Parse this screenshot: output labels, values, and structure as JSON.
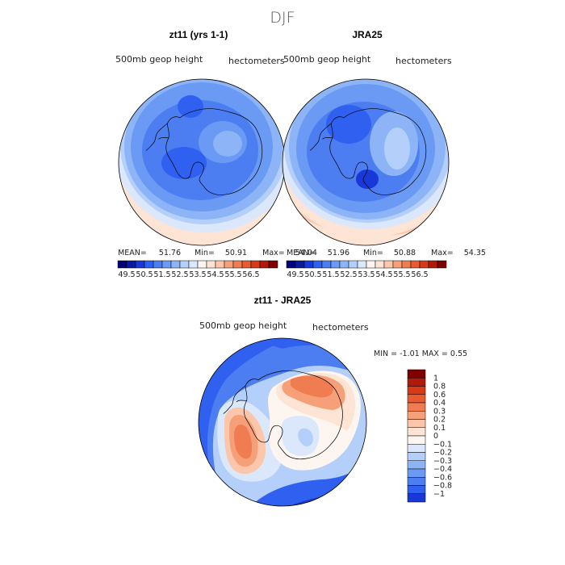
{
  "figure": {
    "title": "DJF",
    "season": "DJF"
  },
  "palette": {
    "blue": [
      "#00007a",
      "#0a1aa0",
      "#1838d8",
      "#3060f0",
      "#4c7ef2",
      "#6a9af4",
      "#8cb4f6",
      "#b4d0fa",
      "#dbe8fc"
    ],
    "neutral": "#fdf6f0",
    "red": [
      "#fde4d4",
      "#fbc6aa",
      "#f6a07a",
      "#f07c52",
      "#e85a30",
      "#d63a18",
      "#b01a0a",
      "#800000"
    ]
  },
  "panels": {
    "left": {
      "title": "zt11 (yrs 1-1)",
      "variable": "500mb geop height",
      "units": "hectometers",
      "stats": {
        "mean_label": "MEAN=",
        "mean": "51.76",
        "min_label": "Min=",
        "min": "50.91",
        "max_label": "Max=",
        "max": "54.04"
      }
    },
    "right": {
      "title": "JRA25",
      "variable": "500mb geop height",
      "units": "hectometers",
      "stats": {
        "mean_label": "MEAN=",
        "mean": "51.96",
        "min_label": "Min=",
        "min": "50.88",
        "max_label": "Max=",
        "max": "54.35"
      }
    },
    "diff": {
      "title": "zt11 - JRA25",
      "variable": "500mb geop height",
      "units": "hectometers",
      "stats_text": "MIN =   -1.01  MAX =    0.55"
    }
  },
  "colorbars": {
    "horizontal_labels": [
      "49.5",
      "50.5",
      "51.5",
      "52.5",
      "53.5",
      "54.5",
      "55.5",
      "56.5"
    ],
    "diff_labels": [
      "1",
      "0.8",
      "0.6",
      "0.4",
      "0.3",
      "0.2",
      "0.1",
      "0",
      "−0.1",
      "−0.2",
      "−0.3",
      "−0.4",
      "−0.6",
      "−0.8",
      "−1"
    ]
  },
  "chart_data": [
    {
      "type": "heatmap",
      "title": "zt11 (yrs 1-1)",
      "subtitle": "500mb geop height",
      "units": "hectometers",
      "projection": "south polar stereographic",
      "mean": 51.76,
      "min": 50.91,
      "max": 54.04,
      "contour_levels": [
        49.5,
        50.0,
        50.5,
        51.0,
        51.5,
        52.0,
        52.5,
        53.0,
        53.5,
        54.0,
        54.5,
        55.0,
        55.5,
        56.0,
        56.5
      ]
    },
    {
      "type": "heatmap",
      "title": "JRA25",
      "subtitle": "500mb geop height",
      "units": "hectometers",
      "projection": "south polar stereographic",
      "mean": 51.96,
      "min": 50.88,
      "max": 54.35,
      "contour_levels": [
        49.5,
        50.0,
        50.5,
        51.0,
        51.5,
        52.0,
        52.5,
        53.0,
        53.5,
        54.0,
        54.5,
        55.0,
        55.5,
        56.0,
        56.5
      ]
    },
    {
      "type": "heatmap",
      "title": "zt11 - JRA25",
      "subtitle": "500mb geop height",
      "units": "hectometers",
      "projection": "south polar stereographic",
      "min": -1.01,
      "max": 0.55,
      "contour_levels": [
        -1,
        -0.8,
        -0.6,
        -0.4,
        -0.3,
        -0.2,
        -0.1,
        0,
        0.1,
        0.2,
        0.3,
        0.4,
        0.6,
        0.8,
        1
      ]
    }
  ]
}
